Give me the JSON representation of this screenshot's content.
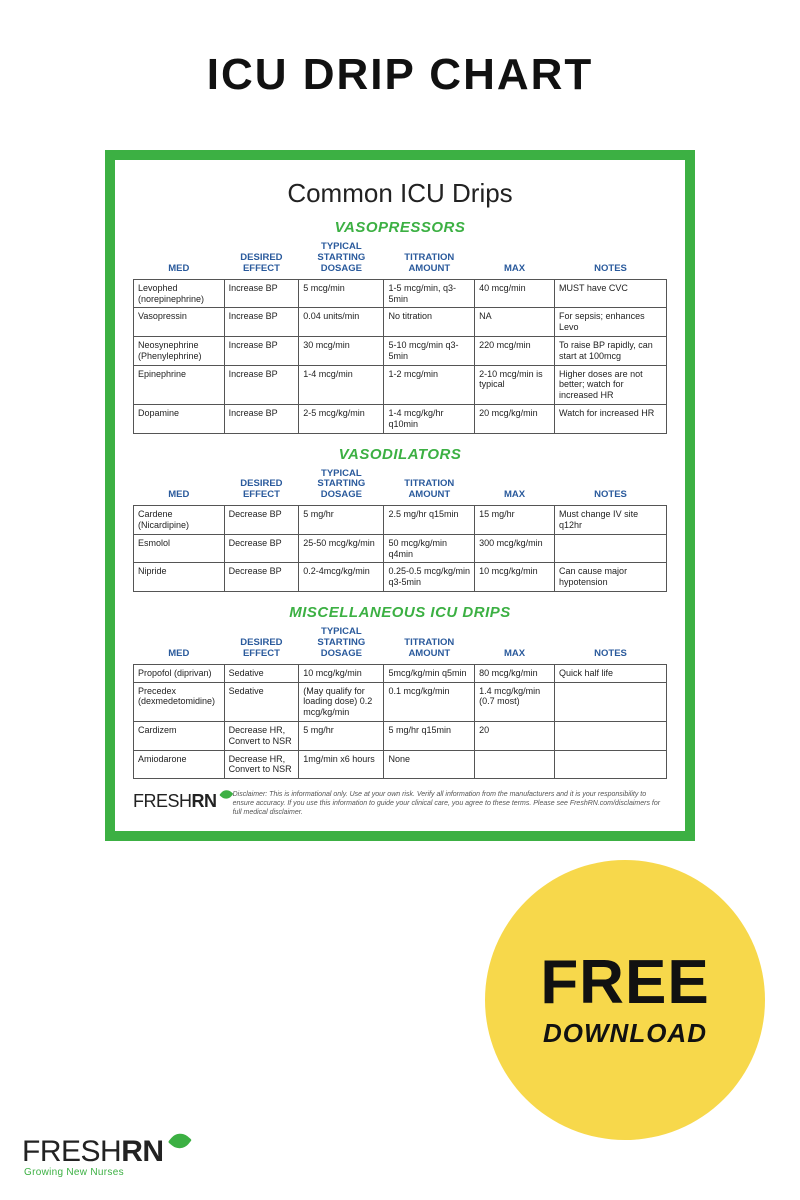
{
  "page": {
    "title": "ICU DRIP CHART",
    "colors": {
      "accent_green": "#3cb043",
      "header_blue": "#2a5a9c",
      "badge_yellow": "#f7d84b",
      "text_dark": "#111111",
      "border_gray": "#555555",
      "background": "#ffffff"
    }
  },
  "chart": {
    "title": "Common ICU Drips",
    "columns": [
      "MED",
      "DESIRED EFFECT",
      "TYPICAL STARTING DOSAGE",
      "TITRATION AMOUNT",
      "MAX",
      "NOTES"
    ],
    "sections": [
      {
        "title": "VASOPRESSORS",
        "rows": [
          [
            "Levophed (norepinephrine)",
            "Increase BP",
            "5 mcg/min",
            "1-5 mcg/min, q3-5min",
            "40 mcg/min",
            "MUST have CVC"
          ],
          [
            "Vasopressin",
            "Increase BP",
            "0.04 units/min",
            "No titration",
            "NA",
            "For sepsis; enhances Levo"
          ],
          [
            "Neosynephrine (Phenylephrine)",
            "Increase BP",
            "30 mcg/min",
            "5-10 mcg/min q3-5min",
            "220 mcg/min",
            "To raise BP rapidly, can start at 100mcg"
          ],
          [
            "Epinephrine",
            "Increase BP",
            "1-4 mcg/min",
            "1-2 mcg/min",
            "2-10 mcg/min is typical",
            "Higher doses are not better; watch for increased HR"
          ],
          [
            "Dopamine",
            "Increase BP",
            "2-5 mcg/kg/min",
            "1-4 mcg/kg/hr q10min",
            "20 mcg/kg/min",
            "Watch for increased HR"
          ]
        ]
      },
      {
        "title": "VASODILATORS",
        "rows": [
          [
            "Cardene (Nicardipine)",
            "Decrease BP",
            "5 mg/hr",
            "2.5 mg/hr q15min",
            "15 mg/hr",
            "Must change IV site q12hr"
          ],
          [
            "Esmolol",
            "Decrease BP",
            "25-50 mcg/kg/min",
            "50 mcg/kg/min q4min",
            "300 mcg/kg/min",
            ""
          ],
          [
            "Nipride",
            "Decrease BP",
            "0.2-4mcg/kg/min",
            "0.25-0.5 mcg/kg/min q3-5min",
            "10 mcg/kg/min",
            "Can cause major hypotension"
          ]
        ]
      },
      {
        "title": "MISCELLANEOUS ICU DRIPS",
        "rows": [
          [
            "Propofol (diprivan)",
            "Sedative",
            "10 mcg/kg/min",
            "5mcg/kg/min q5min",
            "80 mcg/kg/min",
            "Quick half life"
          ],
          [
            "Precedex (dexmedetomidine)",
            "Sedative",
            "(May qualify for loading dose) 0.2 mcg/kg/min",
            "0.1 mcg/kg/min",
            "1.4 mcg/kg/min (0.7 most)",
            ""
          ],
          [
            "Cardizem",
            "Decrease HR, Convert to NSR",
            "5 mg/hr",
            "5 mg/hr q15min",
            "20",
            ""
          ],
          [
            "Amiodarone",
            "Decrease HR, Convert to NSR",
            "1mg/min x6 hours",
            "None",
            "",
            ""
          ]
        ]
      }
    ],
    "disclaimer": "Disclaimer: This is informational only. Use at your own risk. Verify all information from the manufacturers and it is your responsibility to ensure accuracy. If you use this information to guide your clinical care, you agree to these terms. Please see FreshRN.com/disclaimers for full medical disclaimer."
  },
  "brand": {
    "name_part1": "FRESH",
    "name_part2": "RN",
    "tagline": "Growing New Nurses"
  },
  "badge": {
    "line1": "FREE",
    "line2": "DOWNLOAD"
  }
}
